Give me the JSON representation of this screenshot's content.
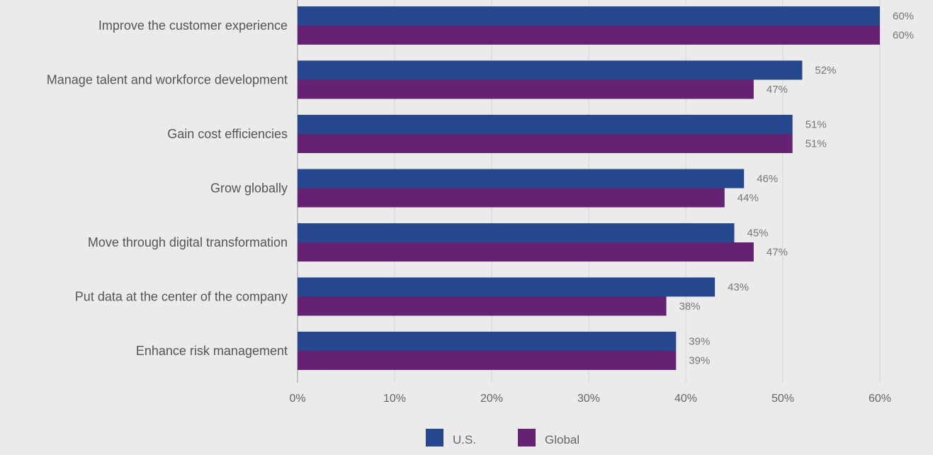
{
  "chart_data": {
    "type": "bar",
    "orientation": "horizontal",
    "categories": [
      "Improve the customer experience",
      "Manage talent and workforce development",
      "Gain cost efficiencies",
      "Grow globally",
      "Move through digital transformation",
      "Put data at the center of the company",
      "Enhance risk management"
    ],
    "series": [
      {
        "name": "U.S.",
        "color": "#26478e",
        "values": [
          60,
          52,
          51,
          46,
          45,
          43,
          39
        ]
      },
      {
        "name": "Global",
        "color": "#652273",
        "values": [
          60,
          47,
          51,
          44,
          47,
          38,
          39
        ]
      }
    ],
    "value_suffix": "%",
    "xlim": [
      0,
      60
    ],
    "x_ticks": [
      0,
      10,
      20,
      30,
      40,
      50,
      60
    ],
    "x_tick_labels": [
      "0%",
      "10%",
      "20%",
      "30%",
      "40%",
      "50%",
      "60%"
    ],
    "title": "",
    "xlabel": "",
    "ylabel": "",
    "grid": true,
    "legend_position": "bottom-center"
  }
}
